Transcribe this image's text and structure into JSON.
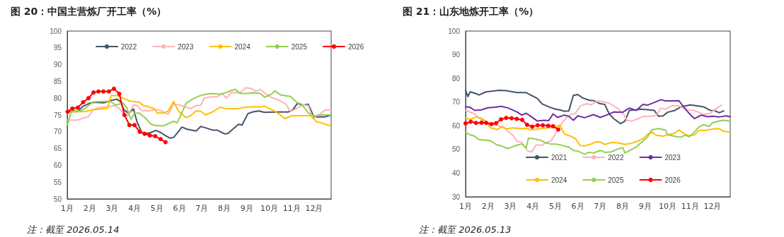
{
  "chart_data": [
    {
      "type": "line",
      "title": "图 20：中国主营炼厂开工率（%）",
      "annotations": [
        "注：截至 2026.05.14"
      ],
      "xlim": [
        1,
        12.76
      ],
      "xticks": [
        {
          "value": 1,
          "label": "1月"
        },
        {
          "value": 2,
          "label": "2月"
        },
        {
          "value": 3,
          "label": "3月"
        },
        {
          "value": 4,
          "label": "4月"
        },
        {
          "value": 5,
          "label": "5月"
        },
        {
          "value": 6,
          "label": "6月"
        },
        {
          "value": 7,
          "label": "7月"
        },
        {
          "value": 8,
          "label": "8月"
        },
        {
          "value": 9,
          "label": "9月"
        },
        {
          "value": 10,
          "label": "10月"
        },
        {
          "value": 11,
          "label": "11月"
        },
        {
          "value": 12,
          "label": "12月"
        }
      ],
      "ylim": [
        50,
        100
      ],
      "yticks": [
        50,
        55,
        60,
        65,
        70,
        75,
        80,
        85,
        90,
        95,
        100
      ],
      "grid": false,
      "legend": "top",
      "marker": "none",
      "line_style": "solid",
      "series": [
        {
          "name": "2022",
          "color": "#44546a",
          "x": [
            1.0,
            1.47,
            1.68,
            2.0,
            2.21,
            2.63,
            2.95,
            3.21,
            3.37,
            3.53,
            3.74,
            3.95,
            4.11,
            4.32,
            4.53,
            4.74,
            4.95,
            5.16,
            5.37,
            5.58,
            5.74,
            5.89,
            6.11,
            6.32,
            6.74,
            6.95,
            7.16,
            7.47,
            7.68,
            8.0,
            8.16,
            8.42,
            8.63,
            8.79,
            9.05,
            9.26,
            9.53,
            9.79,
            10.42,
            10.84,
            11.05,
            11.26,
            11.47,
            11.74,
            12.0,
            12.21,
            12.47,
            12.76
          ],
          "values": [
            76,
            76,
            77.5,
            78.5,
            78.8,
            78.6,
            79.3,
            79.7,
            79,
            76.5,
            75.5,
            76.8,
            73,
            69.7,
            69.5,
            69.8,
            70.4,
            69.8,
            68.9,
            68.1,
            68.3,
            69.5,
            71.4,
            70.8,
            70.2,
            71.6,
            71.2,
            70.5,
            70.5,
            69.4,
            69.5,
            71,
            72.2,
            72,
            75.4,
            75.9,
            76.2,
            75.8,
            75.9,
            75.9,
            76.5,
            78.5,
            77.9,
            78.2,
            74.3,
            74.4,
            74.4,
            75
          ]
        },
        {
          "name": "2023",
          "color": "#ffb3b8",
          "x": [
            1.0,
            1.47,
            1.68,
            1.95,
            2.15,
            2.4,
            2.9,
            3.1,
            3.3,
            3.5,
            3.7,
            3.95,
            4.11,
            4.32,
            4.6,
            4.9,
            5.0,
            5.2,
            5.5,
            5.74,
            6.0,
            6.3,
            6.5,
            6.74,
            6.95,
            7.1,
            7.4,
            7.68,
            7.9,
            8.1,
            8.3,
            8.7,
            8.95,
            9.15,
            9.4,
            9.6,
            9.9,
            10.1,
            10.5,
            10.75,
            10.95,
            11.2,
            11.5,
            11.74,
            11.95,
            12.2,
            12.5,
            12.76
          ],
          "values": [
            73.5,
            73.5,
            74,
            74.5,
            76.5,
            77.2,
            77.5,
            77.8,
            77,
            75.5,
            74.8,
            78,
            77.8,
            76.3,
            76.2,
            76.5,
            76.6,
            76.2,
            75.2,
            78.2,
            78,
            77.3,
            76.9,
            77.8,
            77.9,
            80,
            80.4,
            80.4,
            81.3,
            80,
            81.7,
            81.6,
            83.1,
            83,
            82.1,
            82.6,
            81,
            80.2,
            79.2,
            78.2,
            76,
            76.8,
            78,
            77.8,
            73.9,
            75,
            76.5,
            76.5
          ]
        },
        {
          "name": "2024",
          "color": "#ffc000",
          "x": [
            1.0,
            1.3,
            1.8,
            2.1,
            2.5,
            2.8,
            2.95,
            3.2,
            3.5,
            3.8,
            4.0,
            4.2,
            4.4,
            4.6,
            4.9,
            5.0,
            5.3,
            5.5,
            5.74,
            5.95,
            6.3,
            6.5,
            6.74,
            6.95,
            7.16,
            7.5,
            7.8,
            8.0,
            8.3,
            8.6,
            8.95,
            9.3,
            9.6,
            9.8,
            10.2,
            10.5,
            10.7,
            11.0,
            11.4,
            11.8,
            11.9,
            12.1,
            12.4,
            12.6,
            12.76
          ],
          "values": [
            76.5,
            76,
            76,
            76.5,
            76.8,
            77,
            80.8,
            80.8,
            80,
            79.1,
            79,
            78.8,
            77.8,
            77.5,
            76.8,
            75.6,
            75.6,
            76.2,
            79,
            76.2,
            74.2,
            74.8,
            76.2,
            76.1,
            75,
            76,
            77.3,
            77,
            76.9,
            76.9,
            77.3,
            77.4,
            77.4,
            77.6,
            76.3,
            75,
            73.9,
            74.8,
            74.8,
            74.8,
            74.5,
            73,
            72.5,
            72,
            71.8
          ]
        },
        {
          "name": "2025",
          "color": "#92d050",
          "x": [
            1.0,
            1.2,
            1.6,
            1.8,
            2.15,
            2.5,
            2.9,
            3.15,
            3.5,
            3.65,
            3.84,
            4.0,
            4.2,
            4.5,
            4.74,
            5.0,
            5.3,
            5.6,
            5.74,
            5.9,
            6.3,
            6.6,
            6.9,
            7.2,
            7.4,
            7.8,
            8.1,
            8.3,
            8.5,
            8.7,
            9.0,
            9.3,
            9.6,
            9.8,
            10.1,
            10.26,
            10.5,
            10.7,
            10.95,
            11.26,
            11.45,
            11.74,
            12.0,
            12.3,
            12.5,
            12.76
          ],
          "values": [
            72,
            76.3,
            76.2,
            77,
            78.9,
            79,
            79.1,
            78,
            78.5,
            77.2,
            73.7,
            75.5,
            75.6,
            74,
            72.2,
            71.8,
            71.8,
            72.7,
            73.1,
            72.7,
            78.5,
            79.8,
            80.7,
            81.2,
            81.4,
            81.2,
            81.7,
            82.3,
            82.6,
            81.4,
            81.4,
            81.6,
            81.4,
            80.3,
            81.2,
            82.2,
            81,
            80.8,
            80.5,
            78.6,
            78.2,
            75.6,
            74.7,
            75,
            75,
            75
          ]
        },
        {
          "name": "2026",
          "color": "#ff0000",
          "marker": "circle",
          "x": [
            1.02,
            1.23,
            1.47,
            1.71,
            1.95,
            2.17,
            2.39,
            2.61,
            2.86,
            3.08,
            3.32,
            3.55,
            3.77,
            4.0,
            4.23,
            4.45,
            4.68,
            4.92,
            5.16,
            5.38
          ],
          "values": [
            76,
            76.9,
            77.2,
            78.8,
            80,
            81.7,
            82,
            82,
            82,
            82.8,
            81.3,
            75,
            72,
            72,
            70,
            69.4,
            68.9,
            68.7,
            67.8,
            66.9
          ]
        }
      ]
    },
    {
      "type": "line",
      "title": "图 21：山东地炼开工率（%）",
      "annotations": [
        "注：截至 2026.05.13"
      ],
      "xlim": [
        1,
        12.79
      ],
      "xticks": [
        {
          "value": 1,
          "label": "1月"
        },
        {
          "value": 2,
          "label": "2月"
        },
        {
          "value": 3,
          "label": "3月"
        },
        {
          "value": 4,
          "label": "4月"
        },
        {
          "value": 5,
          "label": "5月"
        },
        {
          "value": 6,
          "label": "6月"
        },
        {
          "value": 7,
          "label": "7月"
        },
        {
          "value": 8,
          "label": "8月"
        },
        {
          "value": 9,
          "label": "9月"
        },
        {
          "value": 10,
          "label": "10月"
        },
        {
          "value": 11,
          "label": "11月"
        },
        {
          "value": 12,
          "label": "12月"
        }
      ],
      "ylim": [
        30,
        100
      ],
      "yticks": [
        30,
        40,
        50,
        60,
        70,
        80,
        90,
        100
      ],
      "grid": false,
      "legend": "bottom",
      "marker": "none",
      "line_style": "solid",
      "series": [
        {
          "name": "2021",
          "color": "#44546a",
          "x": [
            1.0,
            1.1,
            1.2,
            1.4,
            1.6,
            1.9,
            2.1,
            2.5,
            2.8,
            3.3,
            3.7,
            4.0,
            4.2,
            4.4,
            4.7,
            5.0,
            5.2,
            5.4,
            5.6,
            5.8,
            6.0,
            6.2,
            6.5,
            6.7,
            7.0,
            7.2,
            7.4,
            7.6,
            7.9,
            8.1,
            8.3,
            8.6,
            8.8,
            9.1,
            9.4,
            9.6,
            9.8,
            10.0,
            10.3,
            10.6,
            11.0,
            11.3,
            11.6,
            11.9,
            12.1,
            12.3,
            12.5
          ],
          "values": [
            75,
            72.3,
            74.3,
            73.8,
            73,
            74.3,
            74.5,
            75,
            74.8,
            74,
            74,
            72.5,
            71.5,
            69.3,
            68,
            67,
            66.7,
            66.1,
            66.3,
            72.8,
            73.2,
            71.8,
            70.8,
            70.6,
            69.3,
            69,
            65,
            63,
            60.9,
            62,
            66.5,
            66.7,
            67,
            66.8,
            66.5,
            64,
            64.2,
            65.7,
            66.4,
            68,
            68.8,
            68.4,
            68,
            66.5,
            66.4,
            65.5,
            66.3
          ]
        },
        {
          "name": "2022",
          "color": "#ffb3b8",
          "x": [
            1.0,
            1.4,
            1.7,
            1.9,
            2.1,
            2.4,
            2.7,
            2.9,
            3.1,
            3.3,
            3.5,
            3.75,
            3.95,
            4.15,
            4.4,
            4.6,
            4.8,
            5.0,
            5.2,
            5.5,
            5.7,
            5.9,
            6.1,
            6.4,
            6.6,
            6.9,
            7.2,
            7.4,
            7.7,
            8.0,
            8.2,
            8.4,
            8.7,
            8.9,
            9.3,
            9.5,
            9.7,
            9.9,
            10.2,
            10.5,
            10.8,
            11.0,
            11.2,
            11.6,
            11.9,
            12.2,
            12.4
          ],
          "values": [
            66.5,
            65,
            62.5,
            61.5,
            61,
            60.2,
            59.5,
            57.5,
            56,
            53.5,
            53,
            49.5,
            49,
            52,
            51.7,
            53,
            53.5,
            56.5,
            60,
            63.5,
            64.8,
            65.3,
            68.3,
            69.3,
            68.9,
            70.5,
            70,
            69.5,
            67.8,
            65.5,
            62.2,
            62,
            63,
            63.9,
            64,
            64.5,
            67.5,
            67,
            68.5,
            68.4,
            67,
            66.6,
            66.4,
            64.8,
            65.3,
            67.5,
            68.7
          ]
        },
        {
          "name": "2023",
          "color": "#7030a0",
          "x": [
            1.0,
            1.2,
            1.4,
            1.7,
            2.0,
            2.3,
            2.6,
            2.9,
            3.3,
            3.5,
            3.7,
            3.9,
            4.2,
            4.5,
            4.7,
            4.9,
            5.1,
            5.4,
            5.6,
            5.8,
            6.0,
            6.3,
            6.7,
            7.0,
            7.3,
            7.6,
            8.0,
            8.3,
            8.6,
            8.9,
            9.1,
            9.4,
            9.7,
            9.9,
            10.2,
            10.5,
            10.8,
            11.0,
            11.2,
            11.5,
            11.8,
            12.0,
            12.3,
            12.6,
            12.79
          ],
          "values": [
            68,
            67.8,
            66.5,
            66.7,
            67.6,
            67.8,
            68.2,
            67.5,
            65.8,
            64.5,
            65.3,
            64,
            62,
            62.3,
            62.2,
            65,
            63.5,
            64.5,
            64,
            62.3,
            64.2,
            63.4,
            64.7,
            63.5,
            64.6,
            65.8,
            65.7,
            67.5,
            66.5,
            69,
            68.7,
            69.8,
            71,
            70.5,
            70.5,
            70.6,
            67,
            64.8,
            63,
            64.5,
            63.8,
            64,
            63.7,
            64.2,
            63.8
          ]
        },
        {
          "name": "2024",
          "color": "#ffc000",
          "x": [
            1.0,
            1.2,
            1.45,
            1.7,
            1.9,
            2.1,
            2.4,
            2.6,
            2.8,
            3.1,
            3.4,
            3.7,
            3.9,
            4.3,
            4.6,
            4.8,
            5.0,
            5.2,
            5.4,
            5.7,
            5.9,
            6.1,
            6.3,
            6.6,
            6.8,
            7.0,
            7.2,
            7.5,
            7.8,
            8.1,
            8.4,
            8.7,
            8.9,
            9.1,
            9.3,
            9.5,
            9.8,
            10.0,
            10.3,
            10.5,
            10.8,
            11.0,
            11.2,
            11.4,
            11.7,
            12.0,
            12.3,
            12.5,
            12.79
          ],
          "values": [
            63.3,
            62.7,
            63.7,
            63.2,
            62,
            59.2,
            58.4,
            59.6,
            58.7,
            59.1,
            58.8,
            58.9,
            58.3,
            58.7,
            59.1,
            59.2,
            59.3,
            60.3,
            56.5,
            55.5,
            54.5,
            51.7,
            51.5,
            52.3,
            53.2,
            53.1,
            52.1,
            52.9,
            52.8,
            52.1,
            52.6,
            53.6,
            54.6,
            56.3,
            57.3,
            56,
            55.6,
            56.2,
            56.8,
            58.2,
            56.3,
            55.8,
            56.1,
            58.1,
            58.1,
            58.6,
            58.8,
            57.6,
            57.4
          ]
        },
        {
          "name": "2025",
          "color": "#92d050",
          "x": [
            1.0,
            1.2,
            1.4,
            1.6,
            1.9,
            2.1,
            2.4,
            2.6,
            2.85,
            3.0,
            3.3,
            3.5,
            3.7,
            3.8,
            4.0,
            4.3,
            4.6,
            4.8,
            5.0,
            5.2,
            5.4,
            5.6,
            5.8,
            6.0,
            6.3,
            6.5,
            6.7,
            7.0,
            7.2,
            7.5,
            7.8,
            8.0,
            8.1,
            8.4,
            8.6,
            8.9,
            9.1,
            9.3,
            9.6,
            9.9,
            10.0,
            10.4,
            10.6,
            10.8,
            10.95,
            11.1,
            11.4,
            11.6,
            11.85,
            12.0,
            12.3,
            12.5,
            12.79
          ],
          "values": [
            57.2,
            56.2,
            55.6,
            54.1,
            53.9,
            53.7,
            51.9,
            51.5,
            50.4,
            50.8,
            51.8,
            52.3,
            50.7,
            54.7,
            54.6,
            54,
            52.7,
            52.3,
            52.3,
            52,
            51.4,
            51,
            49.6,
            49.3,
            48,
            48.8,
            48.5,
            49.6,
            48.8,
            49,
            50.2,
            50.8,
            48.5,
            50,
            51,
            53.5,
            55.2,
            58.3,
            58.8,
            58.2,
            56.2,
            55.4,
            55.2,
            56.1,
            55.3,
            56.4,
            59.5,
            60.4,
            59.7,
            61.3,
            62,
            62.3,
            61.9
          ]
        },
        {
          "name": "2026",
          "color": "#ff0000",
          "marker": "circle",
          "x": [
            1.0,
            1.23,
            1.46,
            1.71,
            1.92,
            2.15,
            2.36,
            2.58,
            2.81,
            3.05,
            3.28,
            3.52,
            3.74,
            3.97,
            4.21,
            4.44,
            4.68,
            4.9,
            5.13
          ],
          "values": [
            61,
            61.7,
            61.2,
            61.3,
            61.2,
            60.7,
            61.1,
            62.7,
            63.3,
            63.2,
            62.9,
            62.5,
            60.4,
            59.6,
            60.2,
            60.2,
            60,
            59.8,
            58.4
          ]
        }
      ]
    }
  ]
}
